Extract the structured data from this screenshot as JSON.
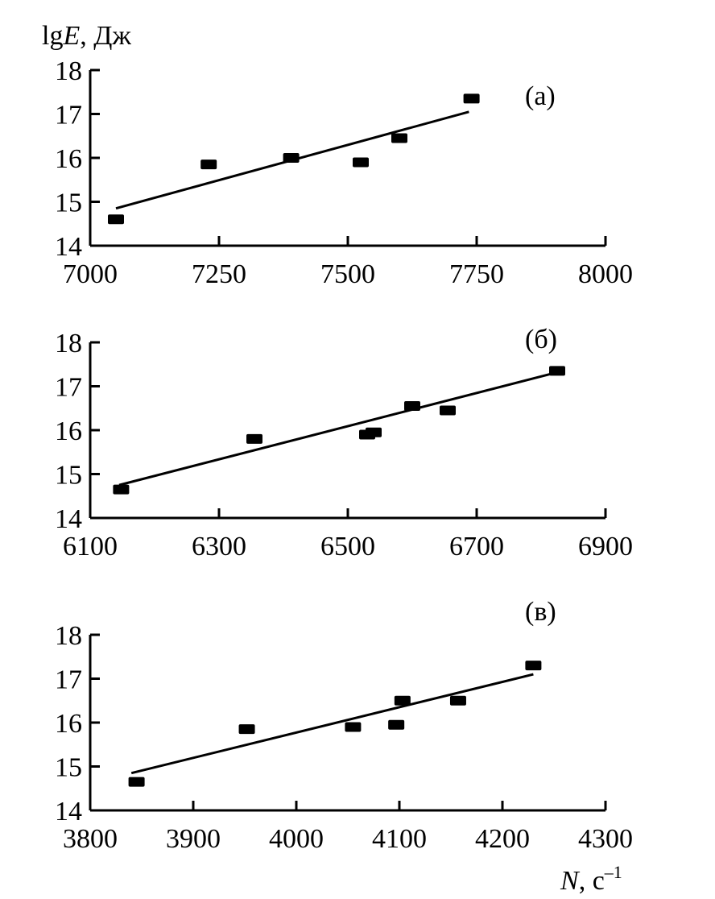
{
  "figure": {
    "ylabel_prefix": "lg",
    "ylabel_var": "E",
    "ylabel_unit": ", Дж",
    "xlabel_var": "N",
    "xlabel_unit": ", с",
    "xlabel_exp": "–1"
  },
  "chart_data": [
    {
      "type": "scatter",
      "panel_label": "(а)",
      "xlim": [
        7000,
        8000
      ],
      "ylim": [
        14,
        18
      ],
      "xticks": [
        7000,
        7250,
        7500,
        7750,
        8000
      ],
      "yticks": [
        14,
        15,
        16,
        17,
        18
      ],
      "points": [
        {
          "x": 7050,
          "y": 14.6
        },
        {
          "x": 7230,
          "y": 15.85
        },
        {
          "x": 7390,
          "y": 16.0
        },
        {
          "x": 7525,
          "y": 15.9
        },
        {
          "x": 7600,
          "y": 16.45
        },
        {
          "x": 7740,
          "y": 17.35
        }
      ],
      "fit_line": [
        {
          "x": 7050,
          "y": 14.85
        },
        {
          "x": 7735,
          "y": 17.05
        }
      ]
    },
    {
      "type": "scatter",
      "panel_label": "(б)",
      "xlim": [
        6100,
        6900
      ],
      "ylim": [
        14,
        18
      ],
      "xticks": [
        6100,
        6300,
        6500,
        6700,
        6900
      ],
      "yticks": [
        14,
        15,
        16,
        17,
        18
      ],
      "points": [
        {
          "x": 6148,
          "y": 14.65
        },
        {
          "x": 6355,
          "y": 15.8
        },
        {
          "x": 6530,
          "y": 15.9
        },
        {
          "x": 6540,
          "y": 15.95
        },
        {
          "x": 6600,
          "y": 16.55
        },
        {
          "x": 6655,
          "y": 16.45
        },
        {
          "x": 6825,
          "y": 17.35
        }
      ],
      "fit_line": [
        {
          "x": 6145,
          "y": 14.75
        },
        {
          "x": 6820,
          "y": 17.3
        }
      ]
    },
    {
      "type": "scatter",
      "panel_label": "(в)",
      "xlim": [
        3800,
        4300
      ],
      "ylim": [
        14,
        18
      ],
      "xticks": [
        3800,
        3900,
        4000,
        4100,
        4200,
        4300
      ],
      "yticks": [
        14,
        15,
        16,
        17,
        18
      ],
      "points": [
        {
          "x": 3845,
          "y": 14.65
        },
        {
          "x": 3952,
          "y": 15.85
        },
        {
          "x": 4055,
          "y": 15.9
        },
        {
          "x": 4097,
          "y": 15.95
        },
        {
          "x": 4103,
          "y": 16.5
        },
        {
          "x": 4157,
          "y": 16.5
        },
        {
          "x": 4230,
          "y": 17.3
        }
      ],
      "fit_line": [
        {
          "x": 3840,
          "y": 14.85
        },
        {
          "x": 4230,
          "y": 17.1
        }
      ]
    }
  ]
}
